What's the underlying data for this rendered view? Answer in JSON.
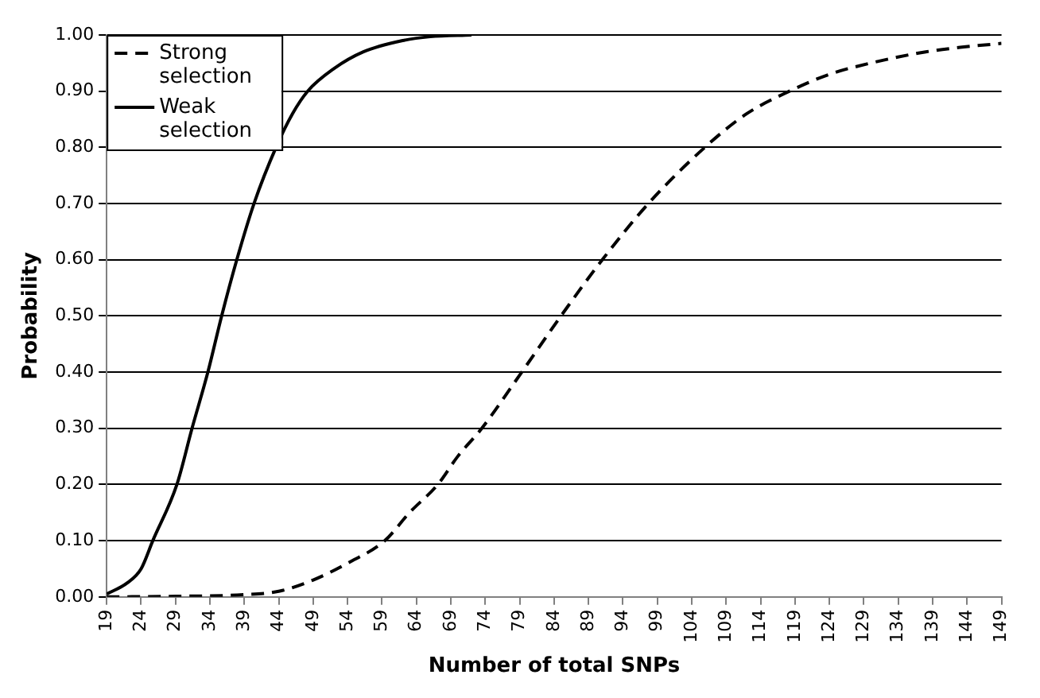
{
  "chart_data": {
    "type": "line",
    "xlabel": "Number of total SNPs",
    "ylabel": "Probability",
    "xlim": [
      19,
      149
    ],
    "xticks": [
      19,
      24,
      29,
      34,
      39,
      44,
      49,
      54,
      59,
      64,
      69,
      74,
      79,
      84,
      89,
      94,
      99,
      104,
      109,
      114,
      119,
      124,
      129,
      134,
      139,
      144,
      149
    ],
    "ylim": [
      0,
      1
    ],
    "yticks": [
      {
        "value": 0,
        "label": "0.00"
      },
      {
        "value": 0.1,
        "label": "0.10"
      },
      {
        "value": 0.2,
        "label": "0.20"
      },
      {
        "value": 0.3,
        "label": "0.30"
      },
      {
        "value": 0.4,
        "label": "0.40"
      },
      {
        "value": 0.5,
        "label": "0.50"
      },
      {
        "value": 0.6,
        "label": "0.60"
      },
      {
        "value": 0.7,
        "label": "0.70"
      },
      {
        "value": 0.8,
        "label": "0.80"
      },
      {
        "value": 0.9,
        "label": "0.90"
      },
      {
        "value": 1,
        "label": "1.00"
      }
    ],
    "grid": "y",
    "legend": "top left",
    "marker": "none",
    "series": [
      {
        "name": "Strong selection",
        "color": "#000000",
        "line_style": "dashed",
        "x": [
          19,
          29,
          39,
          44,
          49,
          54,
          59.4,
          63,
          67.1,
          70,
          73.5,
          79.3,
          85,
          91,
          97.7,
          105.9,
          112,
          118.2,
          124,
          130,
          138,
          143,
          149
        ],
        "values": [
          0,
          0.001,
          0.004,
          0.01,
          0.03,
          0.06,
          0.1,
          0.15,
          0.2,
          0.25,
          0.3,
          0.4,
          0.5,
          0.6,
          0.7,
          0.8,
          0.86,
          0.9,
          0.93,
          0.95,
          0.97,
          0.978,
          0.985
        ]
      },
      {
        "name": "Weak selection",
        "color": "#000000",
        "line_style": "solid",
        "x": [
          19,
          22,
          24,
          25.7,
          29.2,
          31.4,
          33.7,
          35.7,
          37.9,
          40.4,
          43.6,
          46,
          48.2,
          52,
          56.3,
          62,
          66,
          72
        ],
        "values": [
          0.005,
          0.025,
          0.05,
          0.1,
          0.2,
          0.3,
          0.4,
          0.5,
          0.6,
          0.7,
          0.8,
          0.86,
          0.9,
          0.94,
          0.97,
          0.99,
          0.997,
          1
        ]
      }
    ]
  }
}
